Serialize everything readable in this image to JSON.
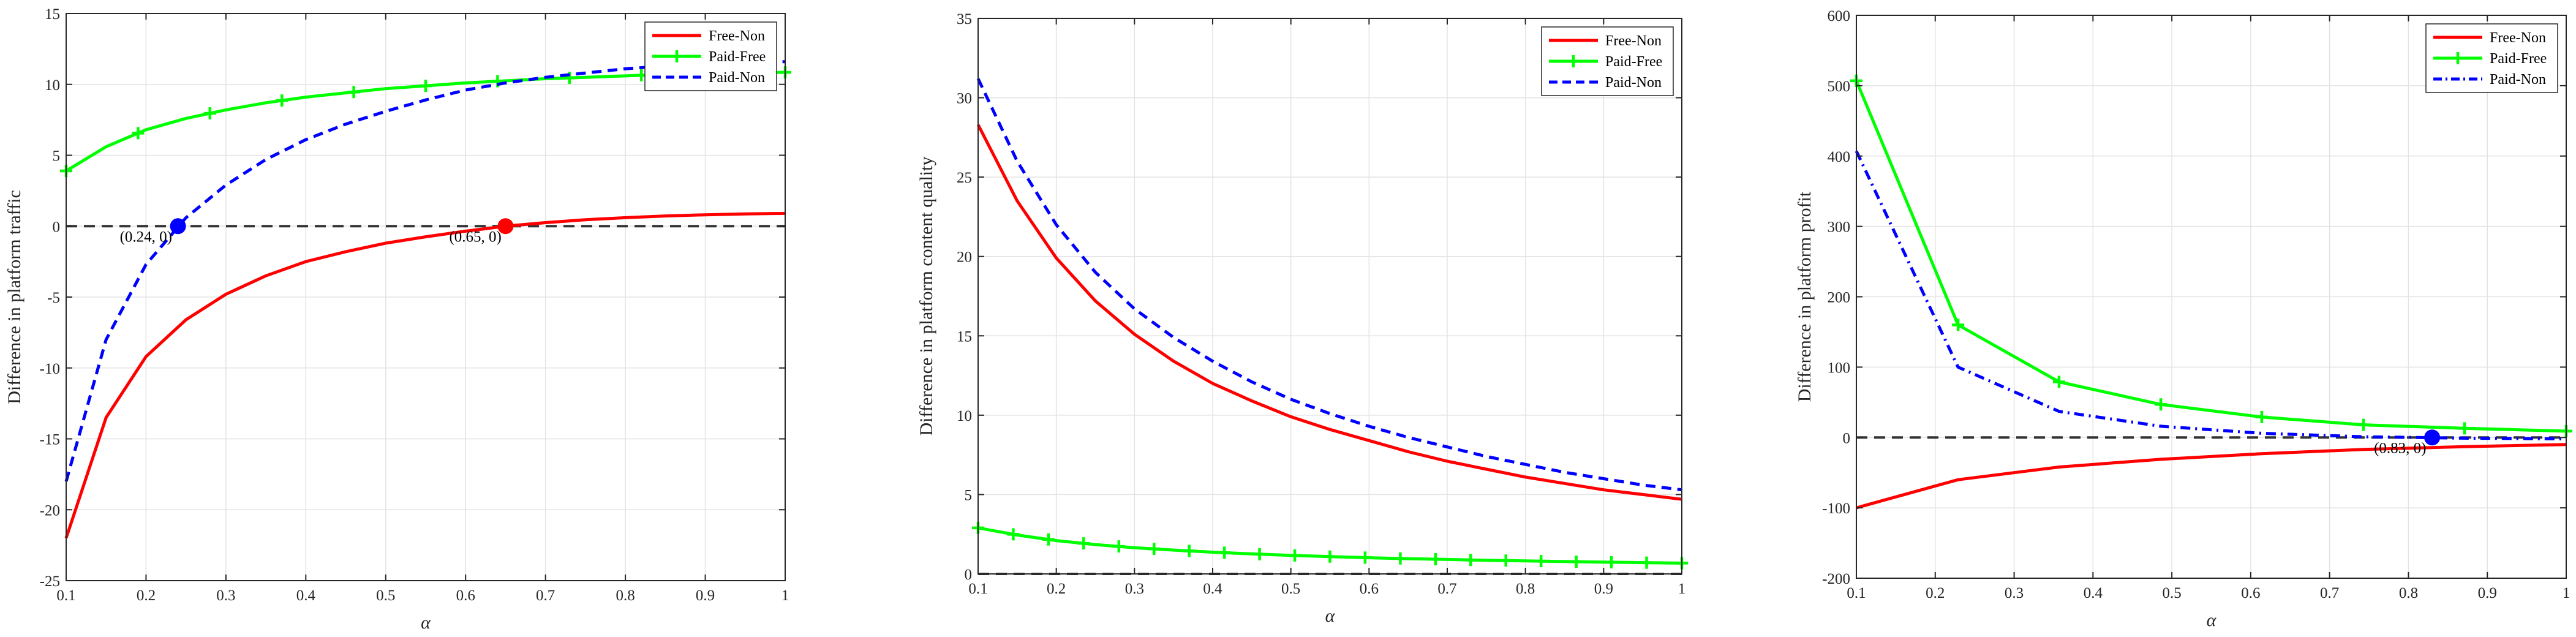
{
  "chart_data": [
    {
      "type": "line",
      "ylabel": "Difference in platform  traffic",
      "xlabel": "α",
      "xlim": [
        0.1,
        1
      ],
      "ylim": [
        -25,
        15
      ],
      "xticks": [
        0.1,
        0.2,
        0.3,
        0.4,
        0.5,
        0.6,
        0.7,
        0.8,
        0.9,
        1
      ],
      "xtick_labels": [
        "0.1",
        "0.2",
        "0.3",
        "0.4",
        "0.5",
        "0.6",
        "0.7",
        "0.8",
        "0.9",
        "1"
      ],
      "yticks": [
        -25,
        -20,
        -15,
        -10,
        -5,
        0,
        5,
        10,
        15
      ],
      "ytick_labels": [
        "-25",
        "-20",
        "-15",
        "-10",
        "-5",
        "0",
        "5",
        "10",
        "15"
      ],
      "grid": true,
      "legend_position": "top-right",
      "zero_line": true,
      "series": [
        {
          "name": "Free-Non",
          "color": "#ff0000",
          "style": "solid",
          "marker": "none",
          "x": [
            0.1,
            0.15,
            0.2,
            0.25,
            0.3,
            0.35,
            0.4,
            0.45,
            0.5,
            0.55,
            0.6,
            0.65,
            0.7,
            0.75,
            0.8,
            0.85,
            0.9,
            0.95,
            1.0
          ],
          "y": [
            -22.0,
            -13.5,
            -9.2,
            -6.6,
            -4.8,
            -3.5,
            -2.5,
            -1.8,
            -1.2,
            -0.75,
            -0.35,
            0.0,
            0.25,
            0.45,
            0.6,
            0.72,
            0.8,
            0.86,
            0.9
          ]
        },
        {
          "name": "Paid-Free",
          "color": "#00ff00",
          "style": "solid",
          "marker": "plus",
          "x": [
            0.1,
            0.15,
            0.2,
            0.25,
            0.3,
            0.35,
            0.4,
            0.45,
            0.5,
            0.55,
            0.6,
            0.65,
            0.7,
            0.75,
            0.8,
            0.85,
            0.9,
            0.95,
            1.0
          ],
          "y": [
            3.9,
            5.6,
            6.8,
            7.6,
            8.2,
            8.7,
            9.1,
            9.4,
            9.7,
            9.9,
            10.1,
            10.25,
            10.4,
            10.5,
            10.6,
            10.7,
            10.75,
            10.8,
            10.85
          ],
          "marker_x": [
            0.1,
            0.19,
            0.28,
            0.37,
            0.46,
            0.55,
            0.64,
            0.73,
            0.82,
            0.91,
            1.0
          ]
        },
        {
          "name": "Paid-Non",
          "color": "#0000ff",
          "style": "dashed",
          "marker": "none",
          "x": [
            0.1,
            0.15,
            0.2,
            0.25,
            0.3,
            0.35,
            0.4,
            0.45,
            0.5,
            0.55,
            0.6,
            0.65,
            0.7,
            0.75,
            0.8,
            0.85,
            0.9,
            0.95,
            1.0
          ],
          "y": [
            -18.0,
            -8.0,
            -2.7,
            0.6,
            2.9,
            4.7,
            6.1,
            7.2,
            8.1,
            8.9,
            9.6,
            10.1,
            10.5,
            10.8,
            11.1,
            11.3,
            11.45,
            11.55,
            11.6
          ]
        }
      ],
      "annotations": [
        {
          "x": 0.24,
          "y": 0,
          "color": "#0000ff",
          "text": "(0.24, 0)"
        },
        {
          "x": 0.65,
          "y": 0,
          "color": "#ff0000",
          "text": "(0.65, 0)"
        }
      ]
    },
    {
      "type": "line",
      "ylabel": "Difference in platform content quality",
      "xlabel": "α",
      "xlim": [
        0.1,
        1
      ],
      "ylim": [
        0,
        35
      ],
      "xticks": [
        0.1,
        0.2,
        0.3,
        0.4,
        0.5,
        0.6,
        0.7,
        0.8,
        0.9,
        1
      ],
      "xtick_labels": [
        "0.1",
        "0.2",
        "0.3",
        "0.4",
        "0.5",
        "0.6",
        "0.7",
        "0.8",
        "0.9",
        "1"
      ],
      "yticks": [
        0,
        5,
        10,
        15,
        20,
        25,
        30,
        35
      ],
      "ytick_labels": [
        "0",
        "5",
        "10",
        "15",
        "20",
        "25",
        "30",
        "35"
      ],
      "grid": true,
      "legend_position": "top-right",
      "zero_line": true,
      "series": [
        {
          "name": "Free-Non",
          "color": "#ff0000",
          "style": "solid",
          "marker": "none",
          "x": [
            0.1,
            0.15,
            0.2,
            0.25,
            0.3,
            0.35,
            0.4,
            0.45,
            0.5,
            0.55,
            0.6,
            0.65,
            0.7,
            0.75,
            0.8,
            0.85,
            0.9,
            0.95,
            1.0
          ],
          "y": [
            28.3,
            23.5,
            19.9,
            17.2,
            15.1,
            13.4,
            12.0,
            10.9,
            9.9,
            9.1,
            8.4,
            7.7,
            7.1,
            6.6,
            6.1,
            5.7,
            5.3,
            5.0,
            4.7
          ]
        },
        {
          "name": "Paid-Free",
          "color": "#00ff00",
          "style": "solid",
          "marker": "plus",
          "x": [
            0.1,
            0.15,
            0.2,
            0.25,
            0.3,
            0.35,
            0.4,
            0.45,
            0.5,
            0.55,
            0.6,
            0.65,
            0.7,
            0.75,
            0.8,
            0.85,
            0.9,
            0.95,
            1.0
          ],
          "y": [
            2.9,
            2.45,
            2.1,
            1.85,
            1.65,
            1.5,
            1.37,
            1.26,
            1.17,
            1.09,
            1.02,
            0.96,
            0.91,
            0.86,
            0.82,
            0.78,
            0.74,
            0.71,
            0.68
          ],
          "marker_x": [
            0.1,
            0.145,
            0.19,
            0.235,
            0.28,
            0.325,
            0.37,
            0.415,
            0.46,
            0.505,
            0.55,
            0.595,
            0.64,
            0.685,
            0.73,
            0.775,
            0.82,
            0.865,
            0.91,
            0.955,
            1.0
          ]
        },
        {
          "name": "Paid-Non",
          "color": "#0000ff",
          "style": "dashed",
          "marker": "none",
          "x": [
            0.1,
            0.15,
            0.2,
            0.25,
            0.3,
            0.35,
            0.4,
            0.45,
            0.5,
            0.55,
            0.6,
            0.65,
            0.7,
            0.75,
            0.8,
            0.85,
            0.9,
            0.95,
            1.0
          ],
          "y": [
            31.2,
            26.0,
            22.0,
            19.0,
            16.7,
            14.9,
            13.4,
            12.1,
            11.0,
            10.1,
            9.3,
            8.6,
            8.0,
            7.4,
            6.9,
            6.4,
            6.0,
            5.6,
            5.3
          ]
        }
      ],
      "annotations": []
    },
    {
      "type": "line",
      "ylabel": "Difference in platform profit",
      "xlabel": "α",
      "xlim": [
        0.1,
        1
      ],
      "ylim": [
        -200,
        600
      ],
      "xticks": [
        0.1,
        0.2,
        0.3,
        0.4,
        0.5,
        0.6,
        0.7,
        0.8,
        0.9,
        1
      ],
      "xtick_labels": [
        "0.1",
        "0.2",
        "0.3",
        "0.4",
        "0.5",
        "0.6",
        "0.7",
        "0.8",
        "0.9",
        "1"
      ],
      "yticks": [
        -200,
        -100,
        0,
        100,
        200,
        300,
        400,
        500,
        600
      ],
      "ytick_labels": [
        "-200",
        "-100",
        "0",
        "100",
        "200",
        "300",
        "400",
        "500",
        "600"
      ],
      "grid": true,
      "legend_position": "top-right",
      "zero_line": true,
      "series": [
        {
          "name": "Free-Non",
          "color": "#ff0000",
          "style": "solid",
          "marker": "none",
          "x": [
            0.1,
            0.229,
            0.357,
            0.486,
            0.614,
            0.743,
            0.871,
            1.0
          ],
          "y": [
            -100,
            -60,
            -42,
            -31,
            -23,
            -17,
            -13,
            -10
          ]
        },
        {
          "name": "Paid-Free",
          "color": "#00ff00",
          "style": "solid",
          "marker": "plus",
          "x": [
            0.1,
            0.229,
            0.357,
            0.486,
            0.614,
            0.743,
            0.871,
            1.0
          ],
          "y": [
            507,
            160,
            79,
            47,
            29,
            18,
            13,
            9
          ],
          "marker_x": [
            0.1,
            0.229,
            0.357,
            0.486,
            0.614,
            0.743,
            0.871,
            1.0
          ]
        },
        {
          "name": "Paid-Non",
          "color": "#0000ff",
          "style": "dashdot",
          "marker": "none",
          "x": [
            0.1,
            0.229,
            0.357,
            0.486,
            0.614,
            0.743,
            0.871,
            1.0
          ],
          "y": [
            407,
            100,
            37,
            16,
            6,
            1,
            -1,
            -2
          ]
        }
      ],
      "annotations": [
        {
          "x": 0.83,
          "y": 0,
          "color": "#0000ff",
          "text": "(0.83, 0)"
        }
      ]
    }
  ]
}
